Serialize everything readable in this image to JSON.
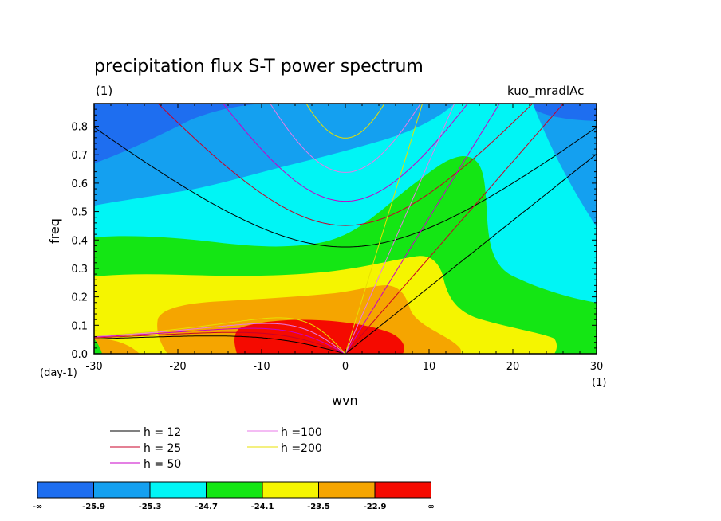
{
  "chart_data": {
    "type": "heatmap",
    "title": "precipitation flux S-T power spectrum",
    "subtitle_left": "(1)",
    "subtitle_right": "kuo_mradlAc",
    "xlabel": "wvn",
    "ylabel": "freq",
    "x_unit_label": "(1)",
    "y_unit_label": "(day-1)",
    "xlim": [
      -30,
      30
    ],
    "ylim": [
      0,
      0.88
    ],
    "x_ticks": [
      "-30",
      "-20",
      "-10",
      "0",
      "10",
      "20",
      "30"
    ],
    "y_ticks": [
      "0.0",
      "0.1",
      "0.2",
      "0.3",
      "0.4",
      "0.5",
      "0.6",
      "0.7",
      "0.8"
    ],
    "contour_levels": [
      "-∞",
      "-25.9",
      "-25.3",
      "-24.7",
      "-24.1",
      "-23.5",
      "-22.9",
      "∞"
    ],
    "colorbar_colors": [
      "#1e6ef0",
      "#14a0f0",
      "#00f5f5",
      "#14e614",
      "#f5f500",
      "#f5a500",
      "#f50a00"
    ],
    "dispersion_legend": [
      {
        "label": "h = 12",
        "color": "#000000",
        "h": 12
      },
      {
        "label": "h = 25",
        "color": "#c80028",
        "h": 25
      },
      {
        "label": "h = 50",
        "color": "#c800c8",
        "h": 50
      },
      {
        "label": "h =100",
        "color": "#e87ae8",
        "h": 100
      },
      {
        "label": "h =200",
        "color": "#e8e000",
        "h": 200
      }
    ],
    "filled_regions_description_levels": {
      "max_region_center_wvn": 0,
      "max_region_center_freq": 0.05
    }
  }
}
